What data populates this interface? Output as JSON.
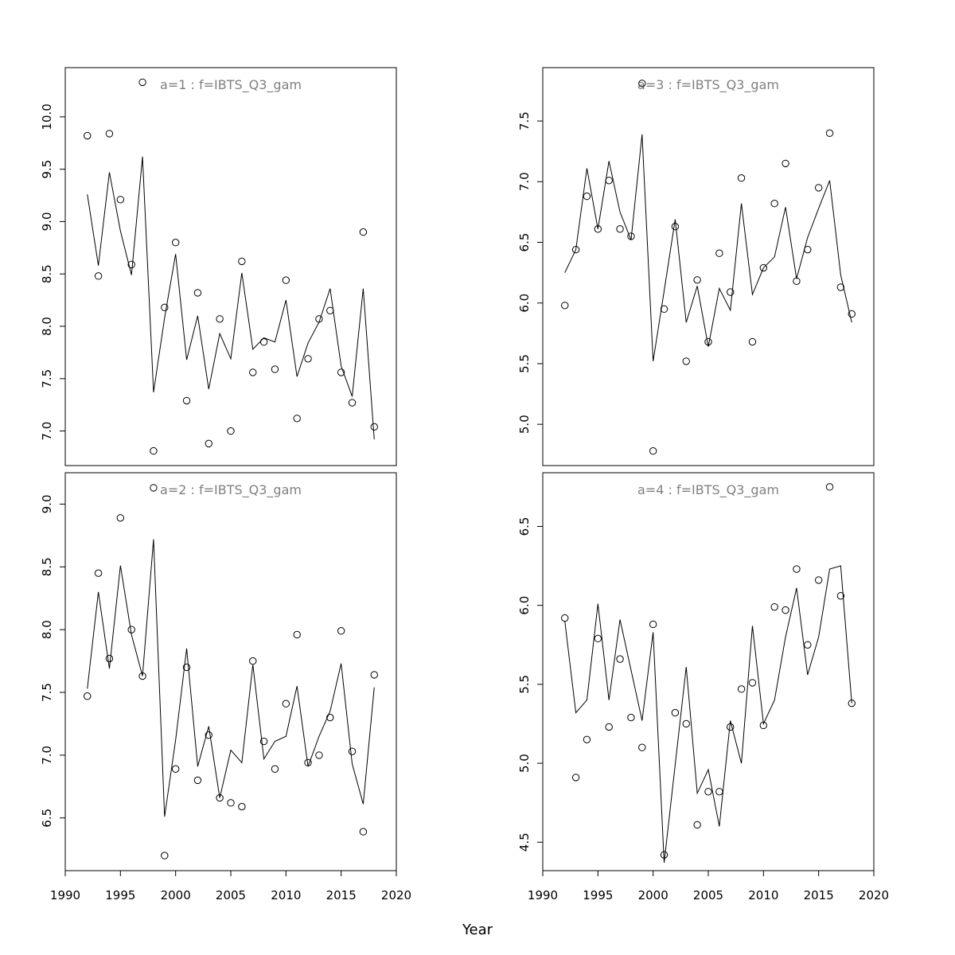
{
  "chart_data": {
    "type": "line+scatter",
    "xlabel": "Year",
    "x_ticks": [
      1990,
      1995,
      2000,
      2005,
      2010,
      2015,
      2020
    ],
    "xlim": [
      1990,
      2020
    ],
    "years": [
      1992,
      1993,
      1994,
      1995,
      1996,
      1997,
      1998,
      1999,
      2000,
      2001,
      2002,
      2003,
      2004,
      2005,
      2006,
      2007,
      2008,
      2009,
      2010,
      2011,
      2012,
      2013,
      2014,
      2015,
      2016,
      2017,
      2018
    ],
    "panels": [
      {
        "title": "a=1  :  f=IBTS_Q3_gam",
        "ylim": [
          6.67,
          10.47
        ],
        "y_ticks": [
          "7.0",
          "7.5",
          "8.0",
          "8.5",
          "9.0",
          "9.5",
          "10.0"
        ],
        "points": [
          9.82,
          8.48,
          9.84,
          9.21,
          8.59,
          10.33,
          6.81,
          8.18,
          8.8,
          7.29,
          8.32,
          6.88,
          8.07,
          7.0,
          8.62,
          7.56,
          7.85,
          7.59,
          8.44,
          7.12,
          7.69,
          8.07,
          8.15,
          7.56,
          7.27,
          8.9,
          7.04
        ],
        "line": [
          9.26,
          8.58,
          9.47,
          8.91,
          8.49,
          9.62,
          7.37,
          8.08,
          8.69,
          7.68,
          8.1,
          7.4,
          7.93,
          7.69,
          8.51,
          7.78,
          7.89,
          7.85,
          8.25,
          7.52,
          7.84,
          8.04,
          8.36,
          7.62,
          7.33,
          8.36,
          6.92
        ]
      },
      {
        "title": "a=3  :  f=IBTS_Q3_gam",
        "ylim": [
          4.66,
          7.94
        ],
        "y_ticks": [
          "5.0",
          "5.5",
          "6.0",
          "6.5",
          "7.0",
          "7.5"
        ],
        "points": [
          5.98,
          6.44,
          6.88,
          6.61,
          7.01,
          6.61,
          6.55,
          7.81,
          4.78,
          5.95,
          6.63,
          5.52,
          6.19,
          5.68,
          6.41,
          6.09,
          7.03,
          5.68,
          6.29,
          6.82,
          7.15,
          6.18,
          6.44,
          6.95,
          7.4,
          6.13,
          5.91
        ],
        "line": [
          6.25,
          6.44,
          7.11,
          6.61,
          7.17,
          6.75,
          6.52,
          7.39,
          5.52,
          6.1,
          6.69,
          5.84,
          6.14,
          5.64,
          6.12,
          5.94,
          6.82,
          6.07,
          6.29,
          6.38,
          6.79,
          6.2,
          6.54,
          6.78,
          7.01,
          6.23,
          5.84
        ]
      },
      {
        "title": "a=2  :  f=IBTS_Q3_gam",
        "ylim": [
          6.08,
          9.25
        ],
        "y_ticks": [
          "6.5",
          "7.0",
          "7.5",
          "8.0",
          "8.5",
          "9.0"
        ],
        "points": [
          7.47,
          8.45,
          7.77,
          8.89,
          8.0,
          7.63,
          9.13,
          6.2,
          6.89,
          7.7,
          6.8,
          7.16,
          6.66,
          6.62,
          6.59,
          7.75,
          7.11,
          6.89,
          7.41,
          7.96,
          6.94,
          7.0,
          7.3,
          7.99,
          7.03,
          6.39,
          7.64
        ],
        "line": [
          7.53,
          8.3,
          7.69,
          8.51,
          7.96,
          7.63,
          8.72,
          6.51,
          7.12,
          7.85,
          6.91,
          7.23,
          6.66,
          7.04,
          6.94,
          7.72,
          6.97,
          7.11,
          7.15,
          7.55,
          6.91,
          7.15,
          7.35,
          7.73,
          6.93,
          6.61,
          7.54
        ]
      },
      {
        "title": "a=4  :  f=IBTS_Q3_gam",
        "ylim": [
          4.32,
          6.84
        ],
        "y_ticks": [
          "4.5",
          "5.0",
          "5.5",
          "6.0",
          "6.5"
        ],
        "points": [
          5.92,
          4.91,
          5.15,
          5.79,
          5.23,
          5.66,
          5.29,
          5.1,
          5.88,
          4.42,
          5.32,
          5.25,
          4.61,
          4.82,
          4.82,
          5.23,
          5.47,
          5.51,
          5.24,
          5.99,
          5.97,
          6.23,
          5.75,
          6.16,
          6.75,
          6.06,
          5.38
        ],
        "line": [
          5.9,
          5.32,
          5.4,
          6.01,
          5.4,
          5.91,
          5.59,
          5.27,
          5.83,
          4.37,
          4.99,
          5.61,
          4.81,
          4.96,
          4.6,
          5.27,
          5.0,
          5.87,
          5.25,
          5.4,
          5.8,
          6.11,
          5.56,
          5.8,
          6.23,
          6.25,
          5.38
        ]
      }
    ],
    "colors": {
      "title": "#808080",
      "line": "#000000"
    }
  }
}
